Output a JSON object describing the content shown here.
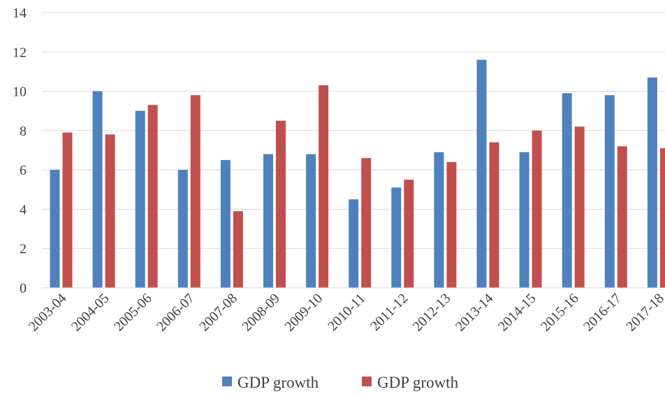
{
  "chart_data": {
    "type": "bar",
    "title": "",
    "xlabel": "",
    "ylabel": "",
    "ylim": [
      0,
      14
    ],
    "yticks": [
      0,
      2,
      4,
      6,
      8,
      10,
      12,
      14
    ],
    "grid": true,
    "legend_position": "bottom-center",
    "categories": [
      "2003-04",
      "2004-05",
      "2005-06",
      "2006-07",
      "2007-08",
      "2008-09",
      "2009-10",
      "2010-11",
      "2011-12",
      "2012-13",
      "2013-14",
      "2014-15",
      "2015-16",
      "2016-17",
      "2017-18"
    ],
    "series": [
      {
        "name": "GDP growth",
        "color": "#4f81bd",
        "values": [
          6.0,
          10.0,
          9.0,
          6.0,
          6.5,
          6.8,
          6.8,
          4.5,
          5.1,
          6.9,
          11.6,
          6.9,
          9.9,
          9.8,
          10.7
        ]
      },
      {
        "name": "GDP growth",
        "color": "#c0504d",
        "values": [
          7.9,
          7.8,
          9.3,
          9.8,
          3.9,
          8.5,
          10.3,
          6.6,
          5.5,
          6.4,
          7.4,
          8.0,
          8.2,
          7.2,
          7.1
        ]
      }
    ]
  }
}
